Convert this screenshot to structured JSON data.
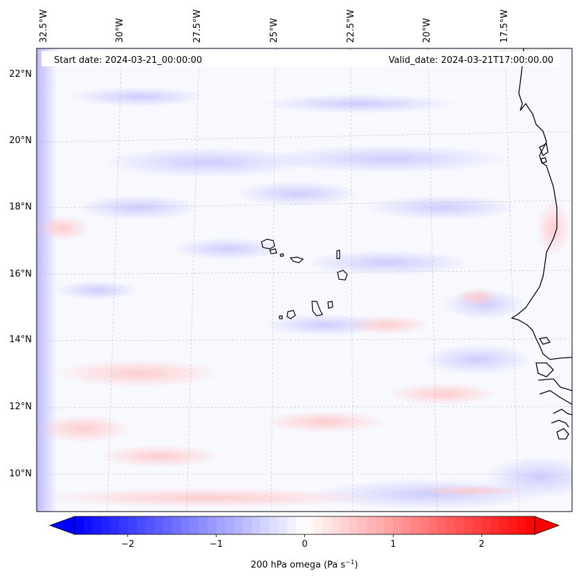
{
  "header": {
    "start_date": "Start date: 2024-03-21_00:00:00",
    "valid_date": "Valid_date: 2024-03-21T17:00:00.00"
  },
  "map": {
    "lon_labels": [
      "32.5°W",
      "30°W",
      "27.5°W",
      "25°W",
      "22.5°W",
      "20°W",
      "17.5°W"
    ],
    "lat_labels": [
      "22°N",
      "20°N",
      "18°N",
      "16°N",
      "14°N",
      "12°N",
      "10°N"
    ],
    "gridlines": true,
    "field_colors": {
      "negative": "#dcdcff",
      "positive": "#ffe0e0",
      "neutral": "#f8f8ff"
    },
    "coastline_color": "#000000",
    "islands": [
      "Santo Antão",
      "São Vicente",
      "São Nicolau",
      "Sal",
      "Boa Vista",
      "Maio",
      "Santiago",
      "Fogo",
      "Brava"
    ]
  },
  "colorbar": {
    "label": "200 hPa omega (Pa s",
    "label_sup": "−1",
    "label_end": ")",
    "ticks": [
      "−2",
      "−1",
      "0",
      "1",
      "2"
    ],
    "tick_values": [
      -2,
      -1,
      0,
      1,
      2
    ],
    "range": [
      -2.6,
      2.6
    ],
    "cmap": "bwr",
    "extend": "both"
  }
}
